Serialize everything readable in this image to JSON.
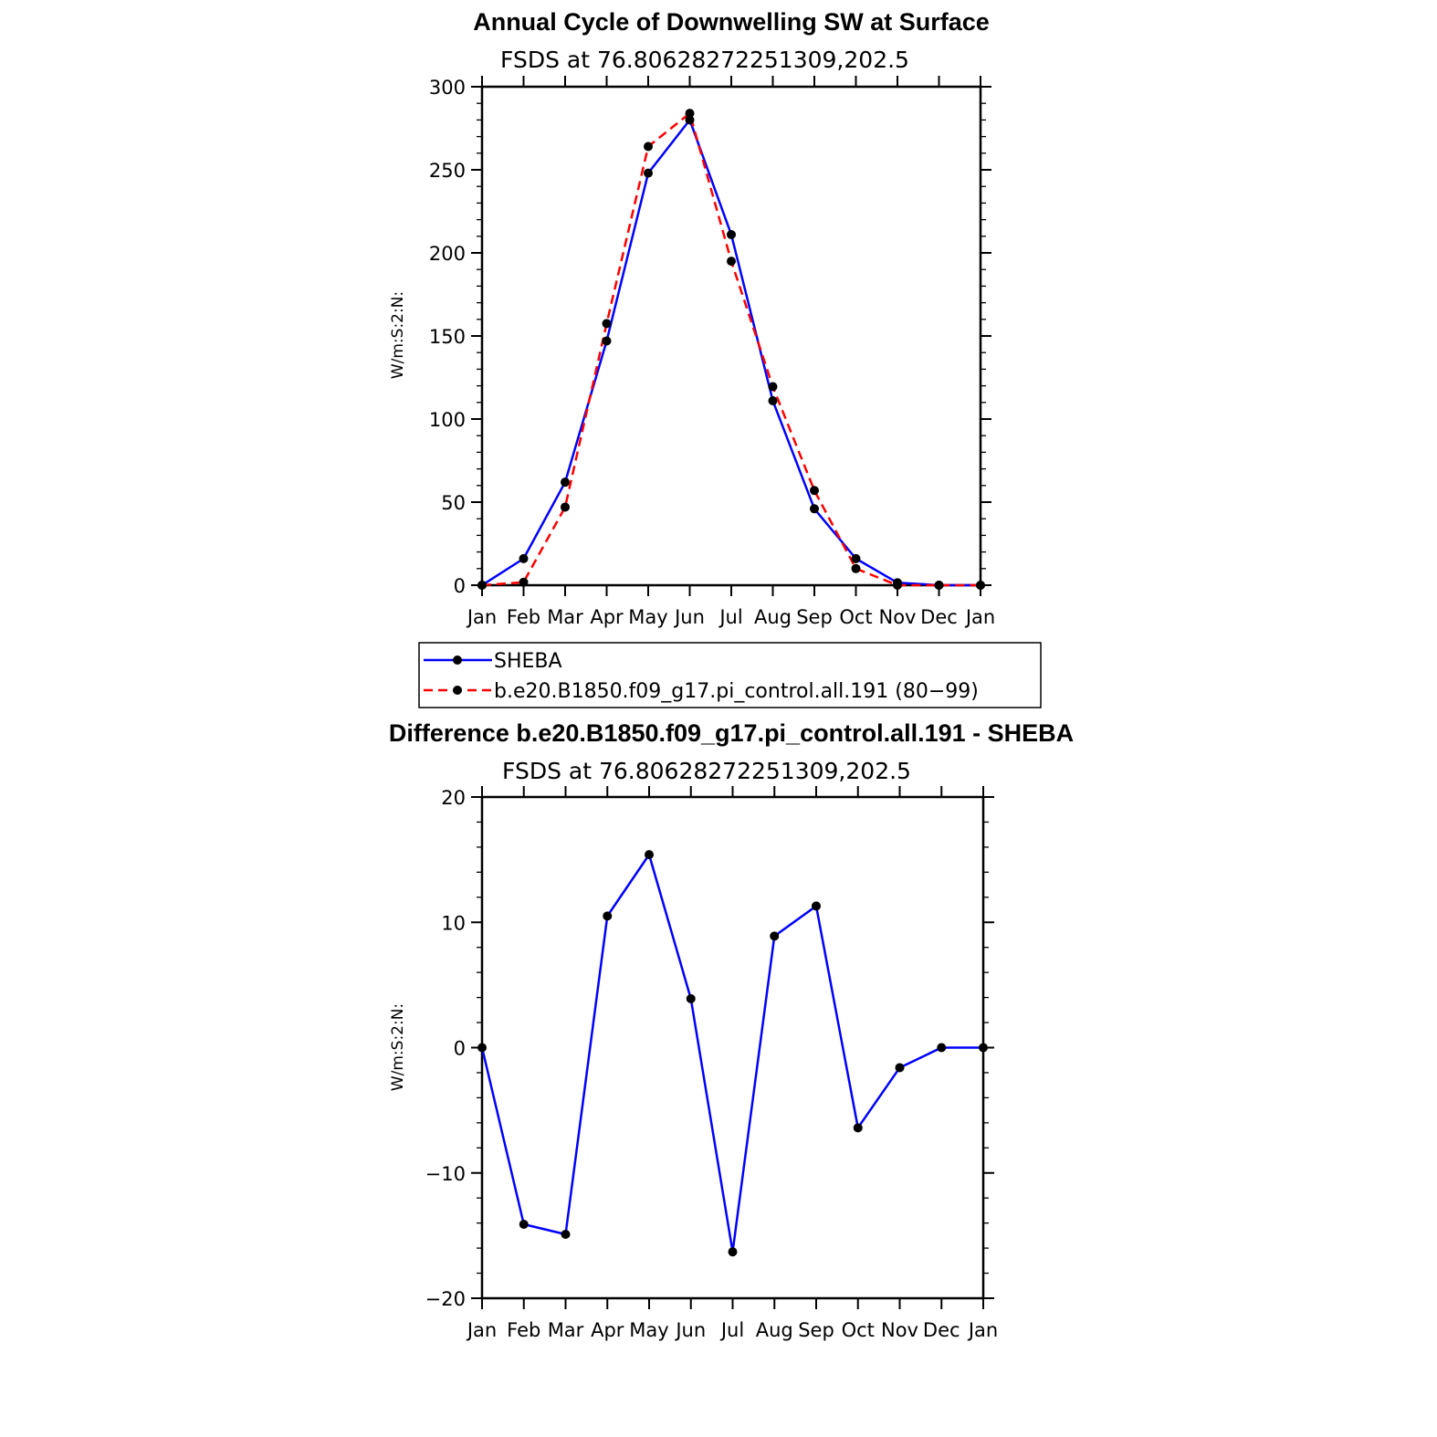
{
  "chart_data": [
    {
      "type": "line",
      "title": "Annual Cycle of Downwelling SW at Surface",
      "subtitle": "FSDS at 76.80628272251309,202.5",
      "xlabel": "",
      "ylabel": "W/m:S:2:N:",
      "categories": [
        "Jan",
        "Feb",
        "Mar",
        "Apr",
        "May",
        "Jun",
        "Jul",
        "Aug",
        "Sep",
        "Oct",
        "Nov",
        "Dec",
        "Jan"
      ],
      "ylim": [
        0,
        300
      ],
      "yticks": [
        "0",
        "50",
        "100",
        "150",
        "200",
        "250",
        "300"
      ],
      "series": [
        {
          "name": "SHEBA",
          "color": "#0000ff",
          "dash": "solid",
          "values": [
            0,
            16,
            62,
            147,
            248,
            280,
            211,
            111,
            46,
            16,
            1.5,
            0,
            0
          ]
        },
        {
          "name": "b.e20.B1850.f09_g17.pi_control.all.191 (80−99)",
          "color": "#ff0000",
          "dash": "dashed",
          "values": [
            0,
            1.8,
            47,
            157.5,
            264,
            284,
            195,
            119.5,
            57,
            10,
            0,
            0,
            0
          ]
        }
      ]
    },
    {
      "type": "line",
      "title": "Difference b.e20.B1850.f09_g17.pi_control.all.191 - SHEBA",
      "subtitle": "FSDS at 76.80628272251309,202.5",
      "xlabel": "",
      "ylabel": "W/m:S:2:N:",
      "categories": [
        "Jan",
        "Feb",
        "Mar",
        "Apr",
        "May",
        "Jun",
        "Jul",
        "Aug",
        "Sep",
        "Oct",
        "Nov",
        "Dec",
        "Jan"
      ],
      "ylim": [
        -20,
        20
      ],
      "yticks": [
        "−20",
        "−10",
        "0",
        "10",
        "20"
      ],
      "series": [
        {
          "color": "#0000ff",
          "dash": "solid",
          "values": [
            0,
            -14.1,
            -14.9,
            10.5,
            15.4,
            3.9,
            -16.3,
            8.9,
            11.3,
            -6.4,
            -1.6,
            0,
            0
          ]
        }
      ]
    }
  ]
}
